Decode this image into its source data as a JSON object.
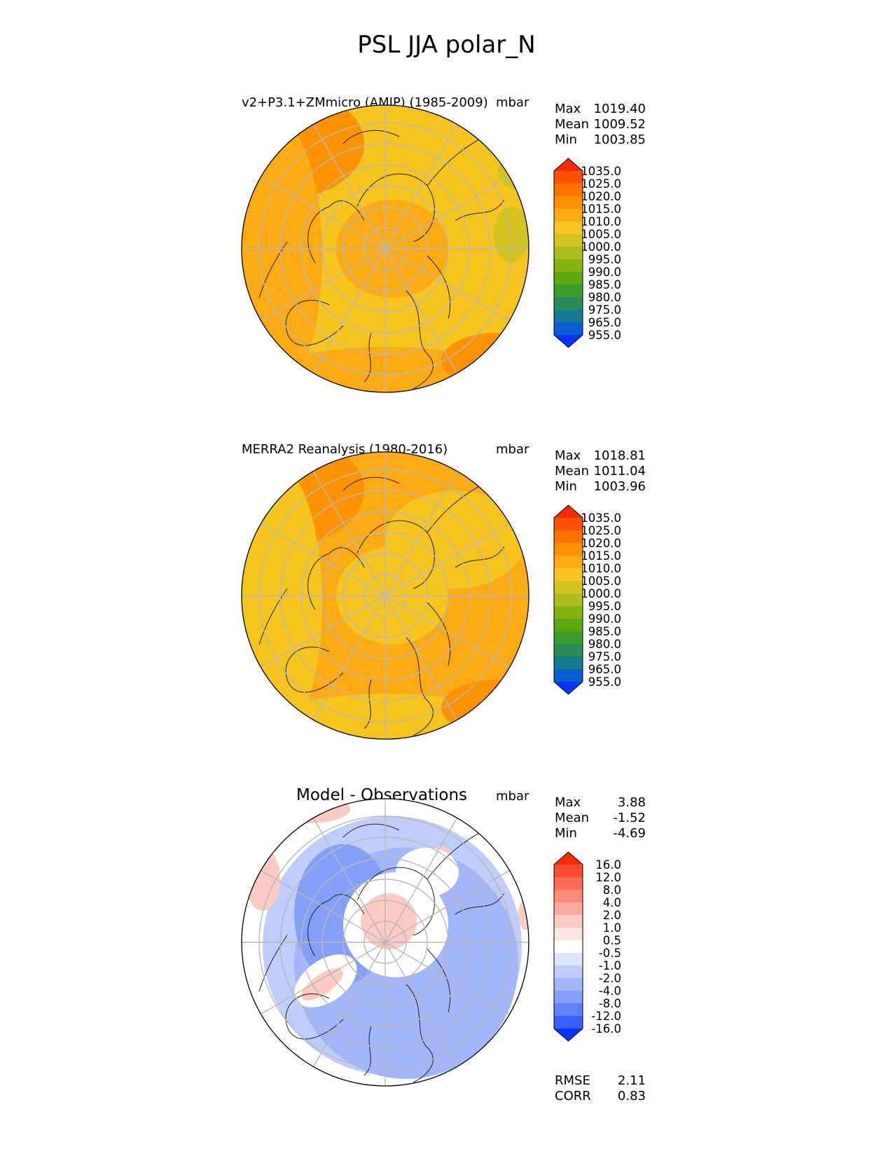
{
  "chart_data": {
    "type": "polar_map_panels",
    "title": "PSL JJA polar_N",
    "panels": [
      {
        "id": "model",
        "title": "v2+P3.1+ZMmicro (AMIP) (1985-2009)",
        "units": "mbar",
        "stats": [
          {
            "label": "Max",
            "value": "1019.40"
          },
          {
            "label": "Mean",
            "value": "1009.52"
          },
          {
            "label": "Min",
            "value": "1003.85"
          }
        ],
        "colorbar": {
          "levels": [
            "1035.0",
            "1025.0",
            "1020.0",
            "1015.0",
            "1010.0",
            "1005.0",
            "1000.0",
            "995.0",
            "990.0",
            "985.0",
            "980.0",
            "975.0",
            "965.0",
            "955.0"
          ],
          "colors": [
            "#fe2a00",
            "#fe5200",
            "#fc7400",
            "#fc9200",
            "#fcaa14",
            "#f6c41f",
            "#d4c31f",
            "#aebd1f",
            "#86b414",
            "#5ea912",
            "#3a9c2a",
            "#2a8a58",
            "#127a92",
            "#0a5ed0",
            "#0834fe"
          ]
        },
        "field": {
          "base": "#f6c41f",
          "patches": "#fcaa14",
          "strong": "#fc9200",
          "low": "#d4c31f"
        }
      },
      {
        "id": "obs",
        "title": "MERRA2 Reanalysis (1980-2016)",
        "units": "mbar",
        "stats": [
          {
            "label": "Max",
            "value": "1018.81"
          },
          {
            "label": "Mean",
            "value": "1011.04"
          },
          {
            "label": "Min",
            "value": "1003.96"
          }
        ],
        "colorbar": {
          "levels": [
            "1035.0",
            "1025.0",
            "1020.0",
            "1015.0",
            "1010.0",
            "1005.0",
            "1000.0",
            "995.0",
            "990.0",
            "985.0",
            "980.0",
            "975.0",
            "965.0",
            "955.0"
          ],
          "colors": [
            "#fe2a00",
            "#fe5200",
            "#fc7400",
            "#fc9200",
            "#fcaa14",
            "#f6c41f",
            "#d4c31f",
            "#aebd1f",
            "#86b414",
            "#5ea912",
            "#3a9c2a",
            "#2a8a58",
            "#127a92",
            "#0a5ed0",
            "#0834fe"
          ]
        },
        "field": {
          "base": "#fcaa14",
          "patches": "#f6c41f",
          "strong": "#fc9200",
          "low": "#d4c31f"
        }
      },
      {
        "id": "diff",
        "title": "Model - Observations",
        "units": "mbar",
        "stats": [
          {
            "label": "Max",
            "value": "3.88"
          },
          {
            "label": "Mean",
            "value": "-1.52"
          },
          {
            "label": "Min",
            "value": "-4.69"
          }
        ],
        "colorbar": {
          "levels": [
            "16.0",
            "12.0",
            "8.0",
            "4.0",
            "2.0",
            "1.0",
            "0.5",
            "-0.5",
            "-1.0",
            "-2.0",
            "-4.0",
            "-8.0",
            "-12.0",
            "-16.0"
          ],
          "colors": [
            "#fe2a00",
            "#fe4a2e",
            "#fd6a55",
            "#fc8a78",
            "#fbaa9e",
            "#fbcac2",
            "#fde6e2",
            "#ffffff",
            "#dde4fb",
            "#bfcdfa",
            "#a2b6f9",
            "#849ff8",
            "#5e82f6",
            "#3a5ef8",
            "#0834fe"
          ]
        },
        "field": {
          "base": "#a2b6f9",
          "patches": "#bfcdfa",
          "strong": "#849ff8",
          "low": "#ffffff",
          "warm": "#fbcac2"
        },
        "metrics": [
          {
            "label": "RMSE",
            "value": "2.11"
          },
          {
            "label": "CORR",
            "value": "0.83"
          }
        ]
      }
    ]
  }
}
